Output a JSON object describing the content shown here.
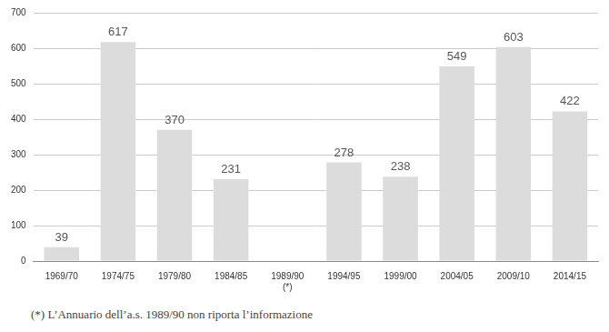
{
  "chart_data": {
    "type": "bar",
    "categories": [
      "1969/70",
      "1974/75",
      "1979/80",
      "1984/85",
      "1989/90\n(*)",
      "1994/95",
      "1999/00",
      "2004/05",
      "2009/10",
      "2014/15"
    ],
    "values": [
      39,
      617,
      370,
      231,
      null,
      278,
      238,
      549,
      603,
      422
    ],
    "color": "#dcdcdc",
    "ylim": [
      0,
      700
    ],
    "yticks": [
      0,
      100,
      200,
      300,
      400,
      500,
      600,
      700
    ],
    "grid": true,
    "data_labels": true,
    "annotations": [
      "(*) L’Annuario dell’a.s. 1989/90 non riporta l’informazione"
    ]
  }
}
